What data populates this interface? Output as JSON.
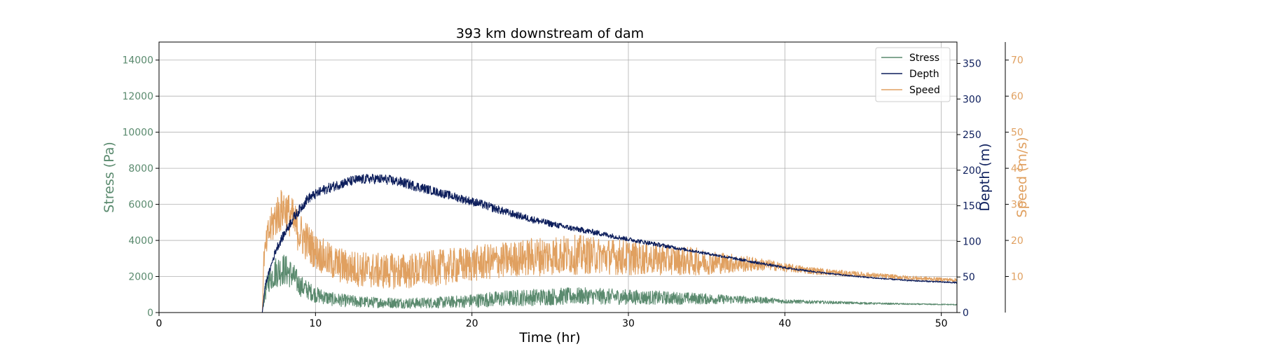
{
  "chart_data": {
    "type": "line",
    "title": "393 km downstream of dam",
    "xlabel": "Time (hr)",
    "xlim": [
      0,
      51
    ],
    "xticks": [
      0,
      10,
      20,
      30,
      40,
      50
    ],
    "grid": true,
    "legend_position": "top-right",
    "axes": {
      "stress": {
        "label": "Stress (Pa)",
        "color": "#5a8a6e",
        "ylim": [
          0,
          15000
        ],
        "ticks": [
          0,
          2000,
          4000,
          6000,
          8000,
          10000,
          12000,
          14000
        ]
      },
      "depth": {
        "label": "Depth (m)",
        "color": "#0d1e5c",
        "ylim": [
          0,
          380
        ],
        "ticks": [
          0,
          50,
          100,
          150,
          200,
          250,
          300,
          350
        ]
      },
      "speed": {
        "label": "Speed (m/s)",
        "color": "#e0a060",
        "ylim": [
          0,
          75
        ],
        "ticks": [
          10,
          20,
          30,
          40,
          50,
          60,
          70
        ]
      }
    },
    "series": [
      {
        "name": "Stress",
        "axis": "stress",
        "color": "#5a8a6e",
        "x": [
          0,
          6.6,
          6.7,
          7.0,
          7.5,
          8.0,
          8.5,
          9.0,
          10,
          11,
          12,
          13,
          14,
          15,
          16,
          17,
          18,
          19,
          20,
          21,
          22,
          23,
          24,
          25,
          26,
          27,
          28,
          29,
          30,
          31,
          32,
          33,
          34,
          35,
          36,
          37,
          38,
          39,
          40,
          42,
          44,
          46,
          48,
          50,
          51
        ],
        "y": [
          0,
          0,
          800,
          1800,
          2300,
          2400,
          2100,
          1500,
          1000,
          750,
          650,
          580,
          560,
          550,
          520,
          540,
          560,
          600,
          650,
          720,
          780,
          820,
          850,
          880,
          900,
          920,
          900,
          880,
          860,
          840,
          820,
          800,
          780,
          760,
          740,
          720,
          700,
          680,
          620,
          580,
          540,
          500,
          470,
          450,
          440
        ],
        "noise": [
          0,
          0,
          400,
          700,
          900,
          900,
          800,
          600,
          450,
          380,
          350,
          320,
          300,
          300,
          300,
          300,
          320,
          340,
          380,
          420,
          450,
          460,
          470,
          480,
          480,
          470,
          460,
          440,
          420,
          400,
          380,
          350,
          330,
          300,
          260,
          230,
          200,
          170,
          120,
          90,
          70,
          50,
          40,
          30,
          30
        ]
      },
      {
        "name": "Depth",
        "axis": "depth",
        "color": "#0d1e5c",
        "x": [
          0,
          6.6,
          6.8,
          7.5,
          8.5,
          9.5,
          10.5,
          11.5,
          12.5,
          13.5,
          14.5,
          15.5,
          16.5,
          17.5,
          18.5,
          19.5,
          20.5,
          21.5,
          22.5,
          24,
          26,
          28,
          30,
          32,
          34,
          36,
          38,
          40,
          42,
          44,
          46,
          48,
          50,
          51
        ],
        "y": [
          0,
          0,
          40,
          90,
          130,
          160,
          172,
          180,
          186,
          188,
          187,
          183,
          177,
          171,
          165,
          159,
          153,
          146,
          139,
          130,
          120,
          112,
          103,
          95,
          87,
          79,
          71,
          63,
          57,
          52,
          48,
          45,
          43,
          42
        ],
        "noise": [
          0,
          0,
          3,
          6,
          7,
          7,
          7,
          7,
          7,
          7,
          7,
          7,
          7,
          6,
          6,
          6,
          6,
          6,
          5,
          5,
          4,
          4,
          3,
          3,
          2,
          2,
          2,
          1.5,
          1.2,
          1,
          1,
          1,
          1,
          1
        ]
      },
      {
        "name": "Speed",
        "axis": "speed",
        "color": "#e0a060",
        "x": [
          0,
          6.6,
          6.7,
          7.0,
          7.5,
          8.0,
          8.5,
          9.0,
          10,
          11,
          12,
          13,
          14,
          15,
          16,
          17,
          18,
          19,
          20,
          21,
          22,
          23,
          24,
          25,
          26,
          27,
          28,
          29,
          30,
          31,
          32,
          33,
          34,
          35,
          36,
          37,
          38,
          39,
          40,
          42,
          44,
          46,
          48,
          50,
          51
        ],
        "y": [
          0,
          0,
          15,
          22,
          27,
          29,
          26,
          22,
          17,
          14,
          12.5,
          12,
          11.5,
          11.5,
          11.5,
          12,
          12.5,
          13,
          13.5,
          14,
          14.5,
          15,
          15.5,
          15.8,
          16,
          16,
          15.8,
          15.5,
          15.2,
          15,
          14.8,
          14.5,
          14.2,
          14,
          13.8,
          13.6,
          13.4,
          13.2,
          12.5,
          11.5,
          10.8,
          10.2,
          9.6,
          9.2,
          9.0
        ],
        "noise": [
          0,
          0,
          3,
          5,
          6,
          6,
          6,
          6,
          5,
          5,
          5,
          5,
          5,
          5,
          5,
          5,
          5,
          5,
          5,
          5,
          5,
          5,
          5.5,
          5.5,
          5.5,
          5.5,
          5,
          5,
          5,
          4.5,
          4.5,
          4,
          4,
          3.5,
          3,
          2.5,
          2,
          1.5,
          1.2,
          1,
          0.8,
          0.7,
          0.6,
          0.5,
          0.5
        ]
      }
    ]
  }
}
